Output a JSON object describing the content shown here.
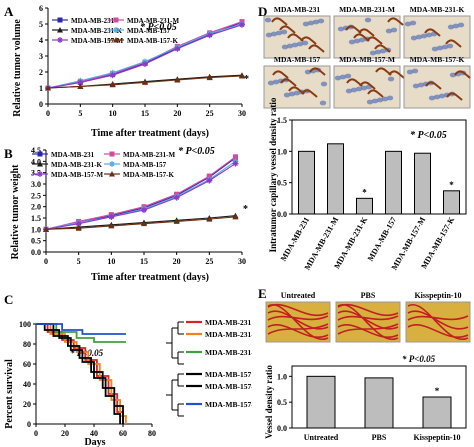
{
  "panels": {
    "A": {
      "letter": "A",
      "stat": "* P<0.05",
      "ylabel": "Relative tumor volume",
      "xlabel": "Time after treatment (days)",
      "xticks": [
        "0",
        "5",
        "10",
        "15",
        "20",
        "25",
        "30"
      ],
      "yticks": [
        "0",
        "1",
        "2",
        "3",
        "4",
        "5",
        "6"
      ],
      "legend": [
        "MDA-MB-231",
        "MDA-MB-231-M",
        "MDA-MB-231-K",
        "MDA-MB-157",
        "MDA-MB-157-M",
        "MDA-MB-157-K"
      ],
      "star": "*"
    },
    "B": {
      "letter": "B",
      "stat": "* P<0.05",
      "ylabel": "Relative tumor weight",
      "xlabel": "Time after treatment (days)",
      "xticks": [
        "0",
        "5",
        "10",
        "15",
        "20",
        "25",
        "30"
      ],
      "yticks": [
        "0.0",
        "0.5",
        "1.0",
        "1.5",
        "2.0",
        "2.5",
        "3.0",
        "3.5",
        "4.0",
        "4.5"
      ],
      "legend": [
        "MDA-MB-231",
        "MDA-MB-231-M",
        "MDA-MB-231-K",
        "MDA-MB-157",
        "MDA-MB-157-M",
        "MDA-MB-157-K"
      ],
      "star": "*"
    },
    "C": {
      "letter": "C",
      "stat": "* P<0.05",
      "ylabel": "Percent survival",
      "xlabel": "Days",
      "xticks": [
        "0",
        "20",
        "40",
        "60",
        "80"
      ],
      "yticks": [
        "0",
        "20",
        "40",
        "60",
        "80",
        "100"
      ],
      "legend": [
        "MDA-MB-231",
        "MDA-MB-231-M",
        "MDA-MB-231-K",
        "MDA-MB-157",
        "MDA-MB-157-M",
        "MDA-MB-157-K"
      ]
    },
    "D": {
      "letter": "D",
      "image_labels": [
        "MDA-MB-231",
        "MDA-MB-231-M",
        "MDA-MB-231-K",
        "MDA-MB-157",
        "MDA-MB-157-M",
        "MDA-MB-157-K"
      ],
      "stat": "* P<0.05",
      "ylabel": "Intratumor capillary vessel density ratio",
      "yticks": [
        "0.0",
        "0.5",
        "1.0",
        "1.5"
      ],
      "categories": [
        "MDA-MB-231",
        "MDA-MB-231-M",
        "MDA-MB-231-K",
        "MDA-MB-157",
        "MDA-MB-157-M",
        "MDA-MB-157-K"
      ],
      "star": "*"
    },
    "E": {
      "letter": "E",
      "image_labels": [
        "Untreated",
        "PBS",
        "Kisspeptin-10"
      ],
      "stat": "* P<0.05",
      "ylabel": "Vessel density ratio",
      "yticks": [
        "0.0",
        "0.5",
        "1.0"
      ],
      "categories": [
        "Untreated",
        "PBS",
        "Kisspeptin-10"
      ],
      "star": "*"
    }
  },
  "colors": {
    "mda231": "#2a2aa8",
    "mda231m": "#d04aa0",
    "mda231k": "#1a1a1a",
    "mda157": "#5aa8e0",
    "mda157m": "#8a3ac8",
    "mda157k": "#6a3010",
    "c_red": "#e02020",
    "c_orange": "#f08020",
    "c_green": "#40a040",
    "c_black": "#000000",
    "c_blue": "#2050d0",
    "bar_fill": "#bdbdbd"
  },
  "chart_data": [
    {
      "type": "line",
      "panel": "A",
      "x": [
        0,
        5,
        10,
        15,
        20,
        25,
        30
      ],
      "ylim": [
        0,
        6
      ],
      "xlim": [
        0,
        30
      ],
      "series": [
        {
          "name": "MDA-MB-231",
          "values": [
            1.0,
            1.35,
            1.85,
            2.55,
            3.5,
            4.35,
            5.1
          ]
        },
        {
          "name": "MDA-MB-231-M",
          "values": [
            1.0,
            1.4,
            1.9,
            2.6,
            3.6,
            4.45,
            5.15
          ]
        },
        {
          "name": "MDA-MB-231-K",
          "values": [
            1.0,
            1.1,
            1.25,
            1.4,
            1.55,
            1.7,
            1.8
          ]
        },
        {
          "name": "MDA-MB-157",
          "values": [
            1.0,
            1.45,
            1.95,
            2.65,
            3.55,
            4.4,
            5.0
          ]
        },
        {
          "name": "MDA-MB-157-M",
          "values": [
            1.0,
            1.35,
            1.8,
            2.5,
            3.45,
            4.3,
            4.95
          ]
        },
        {
          "name": "MDA-MB-157-K",
          "values": [
            1.0,
            1.1,
            1.2,
            1.35,
            1.5,
            1.65,
            1.75
          ]
        }
      ]
    },
    {
      "type": "line",
      "panel": "B",
      "x": [
        0,
        5,
        10,
        15,
        20,
        25,
        29
      ],
      "ylim": [
        0,
        4.5
      ],
      "xlim": [
        0,
        30
      ],
      "series": [
        {
          "name": "MDA-MB-231",
          "values": [
            1.0,
            1.3,
            1.6,
            1.95,
            2.5,
            3.3,
            4.15
          ]
        },
        {
          "name": "MDA-MB-231-M",
          "values": [
            1.0,
            1.35,
            1.65,
            2.0,
            2.55,
            3.35,
            4.2
          ]
        },
        {
          "name": "MDA-MB-231-K",
          "values": [
            1.0,
            1.1,
            1.2,
            1.3,
            1.4,
            1.5,
            1.6
          ]
        },
        {
          "name": "MDA-MB-157",
          "values": [
            1.0,
            1.3,
            1.55,
            1.9,
            2.45,
            3.2,
            4.0
          ]
        },
        {
          "name": "MDA-MB-157-M",
          "values": [
            1.0,
            1.25,
            1.55,
            1.85,
            2.4,
            3.15,
            3.9
          ]
        },
        {
          "name": "MDA-MB-157-K",
          "values": [
            1.0,
            1.05,
            1.15,
            1.25,
            1.35,
            1.45,
            1.55
          ]
        }
      ]
    },
    {
      "type": "line",
      "panel": "C",
      "xlim": [
        0,
        80
      ],
      "ylim": [
        0,
        100
      ],
      "series": [
        {
          "name": "MDA-MB-231",
          "points": [
            [
              0,
              100
            ],
            [
              8,
              100
            ],
            [
              8,
              92
            ],
            [
              18,
              92
            ],
            [
              18,
              84
            ],
            [
              26,
              84
            ],
            [
              26,
              76
            ],
            [
              34,
              76
            ],
            [
              34,
              64
            ],
            [
              42,
              64
            ],
            [
              42,
              48
            ],
            [
              50,
              48
            ],
            [
              50,
              30
            ],
            [
              56,
              30
            ],
            [
              56,
              12
            ],
            [
              60,
              12
            ],
            [
              60,
              0
            ]
          ]
        },
        {
          "name": "MDA-MB-231-M",
          "points": [
            [
              0,
              100
            ],
            [
              10,
              100
            ],
            [
              10,
              90
            ],
            [
              20,
              90
            ],
            [
              20,
              82
            ],
            [
              28,
              82
            ],
            [
              28,
              72
            ],
            [
              36,
              72
            ],
            [
              36,
              60
            ],
            [
              44,
              60
            ],
            [
              44,
              44
            ],
            [
              52,
              44
            ],
            [
              52,
              24
            ],
            [
              58,
              24
            ],
            [
              58,
              8
            ],
            [
              62,
              8
            ],
            [
              62,
              0
            ]
          ]
        },
        {
          "name": "MDA-MB-231-K",
          "points": [
            [
              0,
              100
            ],
            [
              14,
              100
            ],
            [
              14,
              92
            ],
            [
              28,
              92
            ],
            [
              28,
              86
            ],
            [
              40,
              86
            ],
            [
              40,
              82
            ],
            [
              62,
              82
            ]
          ]
        },
        {
          "name": "MDA-MB-157",
          "points": [
            [
              0,
              100
            ],
            [
              6,
              100
            ],
            [
              6,
              94
            ],
            [
              16,
              94
            ],
            [
              16,
              86
            ],
            [
              24,
              86
            ],
            [
              24,
              74
            ],
            [
              32,
              74
            ],
            [
              32,
              62
            ],
            [
              40,
              62
            ],
            [
              40,
              46
            ],
            [
              48,
              46
            ],
            [
              48,
              28
            ],
            [
              54,
              28
            ],
            [
              54,
              10
            ],
            [
              58,
              10
            ],
            [
              58,
              0
            ]
          ]
        },
        {
          "name": "MDA-MB-157-M",
          "points": [
            [
              0,
              100
            ],
            [
              12,
              100
            ],
            [
              12,
              88
            ],
            [
              22,
              88
            ],
            [
              22,
              78
            ],
            [
              30,
              78
            ],
            [
              30,
              66
            ],
            [
              38,
              66
            ],
            [
              38,
              52
            ],
            [
              46,
              52
            ],
            [
              46,
              36
            ],
            [
              54,
              36
            ],
            [
              54,
              18
            ],
            [
              60,
              18
            ],
            [
              60,
              0
            ]
          ]
        },
        {
          "name": "MDA-MB-157-K",
          "points": [
            [
              0,
              100
            ],
            [
              18,
              100
            ],
            [
              18,
              94
            ],
            [
              32,
              94
            ],
            [
              32,
              90
            ],
            [
              62,
              90
            ]
          ]
        }
      ]
    },
    {
      "type": "bar",
      "panel": "D",
      "categories": [
        "MDA-MB-231",
        "MDA-MB-231-M",
        "MDA-MB-231-K",
        "MDA-MB-157",
        "MDA-MB-157-M",
        "MDA-MB-157-K"
      ],
      "values": [
        1.0,
        1.12,
        0.25,
        1.0,
        0.97,
        0.37
      ],
      "ylim": [
        0,
        1.5
      ]
    },
    {
      "type": "bar",
      "panel": "E",
      "categories": [
        "Untreated",
        "PBS",
        "Kisspeptin-10"
      ],
      "values": [
        1.0,
        0.97,
        0.6
      ],
      "ylim": [
        0,
        1.2
      ]
    }
  ]
}
